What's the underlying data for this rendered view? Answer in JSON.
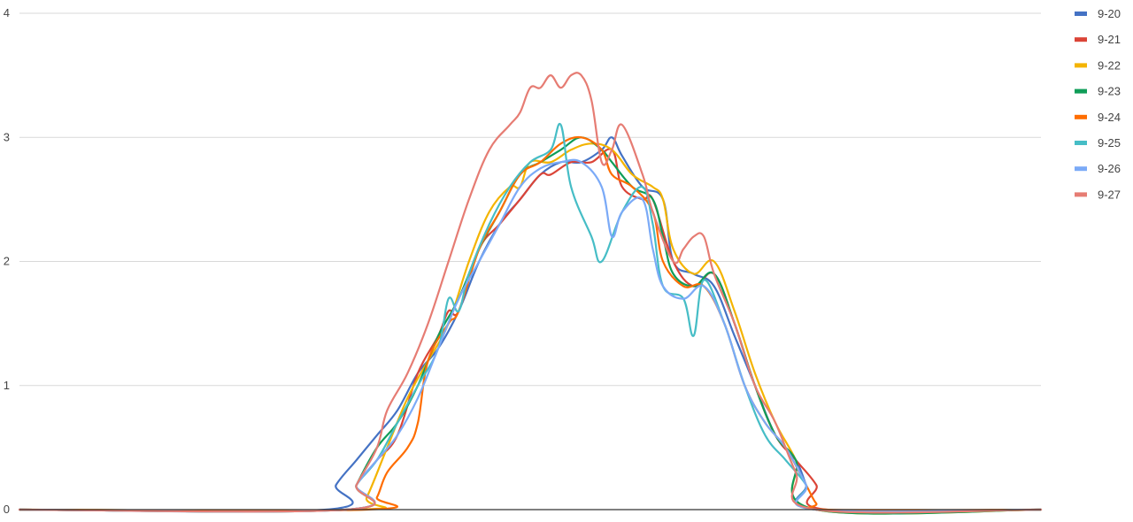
{
  "chart_data": {
    "type": "line",
    "title": "",
    "xlabel": "",
    "ylabel": "",
    "ylim": [
      0,
      4
    ],
    "xlim": [
      0,
      100
    ],
    "yticks": [
      "0",
      "1",
      "2",
      "3",
      "4"
    ],
    "grid": true,
    "legend_position": "right",
    "series": [
      {
        "name": "9-20",
        "color": "#4472c4",
        "points": [
          [
            0,
            0
          ],
          [
            30,
            0
          ],
          [
            31,
            0.2
          ],
          [
            33,
            0.4
          ],
          [
            35,
            0.6
          ],
          [
            37,
            0.8
          ],
          [
            39,
            1.1
          ],
          [
            41,
            1.3
          ],
          [
            43,
            1.6
          ],
          [
            45,
            2.0
          ],
          [
            47,
            2.3
          ],
          [
            49,
            2.5
          ],
          [
            51,
            2.7
          ],
          [
            53,
            2.8
          ],
          [
            55,
            2.8
          ],
          [
            57,
            2.9
          ],
          [
            58,
            3.0
          ],
          [
            59,
            2.85
          ],
          [
            61,
            2.6
          ],
          [
            63,
            2.5
          ],
          [
            64,
            2.0
          ],
          [
            66,
            1.9
          ],
          [
            68,
            1.8
          ],
          [
            70,
            1.4
          ],
          [
            72,
            1.0
          ],
          [
            74,
            0.6
          ],
          [
            76,
            0.4
          ],
          [
            77,
            0.2
          ],
          [
            78,
            0
          ],
          [
            100,
            0
          ]
        ]
      },
      {
        "name": "9-21",
        "color": "#db4437",
        "points": [
          [
            0,
            0
          ],
          [
            32,
            0
          ],
          [
            33,
            0.2
          ],
          [
            35,
            0.4
          ],
          [
            37,
            0.6
          ],
          [
            39,
            1.1
          ],
          [
            41,
            1.4
          ],
          [
            42,
            1.6
          ],
          [
            43,
            1.6
          ],
          [
            45,
            2.1
          ],
          [
            47,
            2.3
          ],
          [
            49,
            2.5
          ],
          [
            51,
            2.7
          ],
          [
            52,
            2.7
          ],
          [
            54,
            2.8
          ],
          [
            56,
            2.8
          ],
          [
            58,
            2.9
          ],
          [
            59,
            2.6
          ],
          [
            61,
            2.5
          ],
          [
            62,
            2.5
          ],
          [
            64,
            2.0
          ],
          [
            66,
            1.8
          ],
          [
            68,
            1.9
          ],
          [
            70,
            1.5
          ],
          [
            72,
            1.0
          ],
          [
            74,
            0.6
          ],
          [
            76,
            0.4
          ],
          [
            78,
            0.2
          ],
          [
            79,
            0
          ],
          [
            100,
            0
          ]
        ]
      },
      {
        "name": "9-22",
        "color": "#f4b400",
        "points": [
          [
            0,
            0
          ],
          [
            33,
            0
          ],
          [
            34,
            0.1
          ],
          [
            36,
            0.5
          ],
          [
            38,
            0.9
          ],
          [
            40,
            1.2
          ],
          [
            42,
            1.5
          ],
          [
            44,
            2.0
          ],
          [
            46,
            2.4
          ],
          [
            48,
            2.6
          ],
          [
            49,
            2.6
          ],
          [
            50,
            2.8
          ],
          [
            52,
            2.8
          ],
          [
            54,
            2.9
          ],
          [
            56,
            2.95
          ],
          [
            58,
            2.9
          ],
          [
            60,
            2.7
          ],
          [
            62,
            2.6
          ],
          [
            63,
            2.5
          ],
          [
            64,
            2.1
          ],
          [
            66,
            1.9
          ],
          [
            68,
            2.0
          ],
          [
            70,
            1.6
          ],
          [
            72,
            1.1
          ],
          [
            74,
            0.7
          ],
          [
            76,
            0.4
          ],
          [
            78,
            0
          ],
          [
            100,
            0
          ]
        ]
      },
      {
        "name": "9-23",
        "color": "#0f9d58",
        "points": [
          [
            0,
            0
          ],
          [
            32,
            0
          ],
          [
            33,
            0.2
          ],
          [
            35,
            0.5
          ],
          [
            37,
            0.7
          ],
          [
            39,
            1.0
          ],
          [
            41,
            1.4
          ],
          [
            43,
            1.7
          ],
          [
            45,
            2.1
          ],
          [
            47,
            2.4
          ],
          [
            49,
            2.7
          ],
          [
            51,
            2.8
          ],
          [
            53,
            2.9
          ],
          [
            55,
            3.0
          ],
          [
            57,
            2.9
          ],
          [
            58,
            2.8
          ],
          [
            60,
            2.6
          ],
          [
            62,
            2.5
          ],
          [
            63,
            2.2
          ],
          [
            64,
            1.9
          ],
          [
            66,
            1.8
          ],
          [
            68,
            1.9
          ],
          [
            70,
            1.5
          ],
          [
            72,
            1.0
          ],
          [
            74,
            0.6
          ],
          [
            76,
            0.4
          ],
          [
            78,
            0.0
          ],
          [
            100,
            0
          ]
        ]
      },
      {
        "name": "9-24",
        "color": "#ff6d00",
        "points": [
          [
            0,
            0
          ],
          [
            34,
            0
          ],
          [
            35,
            0.1
          ],
          [
            36,
            0.3
          ],
          [
            38,
            0.5
          ],
          [
            39,
            0.7
          ],
          [
            40,
            1.2
          ],
          [
            42,
            1.5
          ],
          [
            43,
            1.6
          ],
          [
            45,
            2.1
          ],
          [
            47,
            2.4
          ],
          [
            49,
            2.7
          ],
          [
            51,
            2.8
          ],
          [
            53,
            2.95
          ],
          [
            55,
            3.0
          ],
          [
            57,
            2.9
          ],
          [
            58,
            2.7
          ],
          [
            60,
            2.6
          ],
          [
            62,
            2.4
          ],
          [
            63,
            2.0
          ],
          [
            65,
            1.8
          ],
          [
            67,
            1.8
          ],
          [
            69,
            1.5
          ],
          [
            71,
            1.0
          ],
          [
            73,
            0.7
          ],
          [
            75,
            0.5
          ],
          [
            77,
            0.2
          ],
          [
            78,
            0.05
          ],
          [
            79,
            0
          ],
          [
            100,
            0
          ]
        ]
      },
      {
        "name": "9-25",
        "color": "#46bdc6",
        "points": [
          [
            0,
            0
          ],
          [
            32,
            0
          ],
          [
            33,
            0.2
          ],
          [
            35,
            0.4
          ],
          [
            37,
            0.7
          ],
          [
            39,
            1.0
          ],
          [
            41,
            1.3
          ],
          [
            42,
            1.7
          ],
          [
            43,
            1.6
          ],
          [
            44,
            1.9
          ],
          [
            46,
            2.3
          ],
          [
            48,
            2.6
          ],
          [
            50,
            2.8
          ],
          [
            52,
            2.9
          ],
          [
            53,
            3.1
          ],
          [
            54,
            2.6
          ],
          [
            56,
            2.2
          ],
          [
            57,
            2.0
          ],
          [
            59,
            2.4
          ],
          [
            61,
            2.6
          ],
          [
            62,
            2.3
          ],
          [
            63,
            1.8
          ],
          [
            65,
            1.7
          ],
          [
            66,
            1.4
          ],
          [
            67,
            1.85
          ],
          [
            69,
            1.5
          ],
          [
            71,
            1.0
          ],
          [
            73,
            0.6
          ],
          [
            75,
            0.4
          ],
          [
            77,
            0.2
          ],
          [
            78,
            0
          ],
          [
            100,
            0
          ]
        ]
      },
      {
        "name": "9-26",
        "color": "#7baaf7",
        "points": [
          [
            0,
            0
          ],
          [
            32,
            0
          ],
          [
            33,
            0.2
          ],
          [
            35,
            0.4
          ],
          [
            37,
            0.6
          ],
          [
            39,
            0.9
          ],
          [
            41,
            1.3
          ],
          [
            43,
            1.7
          ],
          [
            45,
            2.0
          ],
          [
            47,
            2.3
          ],
          [
            49,
            2.6
          ],
          [
            51,
            2.75
          ],
          [
            53,
            2.8
          ],
          [
            55,
            2.8
          ],
          [
            57,
            2.6
          ],
          [
            58,
            2.2
          ],
          [
            59,
            2.4
          ],
          [
            61,
            2.5
          ],
          [
            62,
            2.1
          ],
          [
            63,
            1.8
          ],
          [
            65,
            1.7
          ],
          [
            67,
            1.8
          ],
          [
            69,
            1.5
          ],
          [
            71,
            1.0
          ],
          [
            73,
            0.7
          ],
          [
            75,
            0.5
          ],
          [
            77,
            0.2
          ],
          [
            78,
            0
          ],
          [
            100,
            0
          ]
        ]
      },
      {
        "name": "9-27",
        "color": "#e67c73",
        "points": [
          [
            0,
            0
          ],
          [
            32,
            0
          ],
          [
            33,
            0.2
          ],
          [
            35,
            0.5
          ],
          [
            36,
            0.8
          ],
          [
            38,
            1.1
          ],
          [
            40,
            1.5
          ],
          [
            42,
            2.0
          ],
          [
            44,
            2.5
          ],
          [
            46,
            2.9
          ],
          [
            48,
            3.1
          ],
          [
            49,
            3.2
          ],
          [
            50,
            3.4
          ],
          [
            51,
            3.4
          ],
          [
            52,
            3.5
          ],
          [
            53,
            3.4
          ],
          [
            54,
            3.5
          ],
          [
            55,
            3.5
          ],
          [
            56,
            3.3
          ],
          [
            57,
            2.8
          ],
          [
            58,
            2.9
          ],
          [
            59,
            3.1
          ],
          [
            61,
            2.7
          ],
          [
            62,
            2.4
          ],
          [
            64,
            2.0
          ],
          [
            65,
            2.1
          ],
          [
            66,
            2.2
          ],
          [
            67,
            2.2
          ],
          [
            68,
            1.9
          ],
          [
            70,
            1.5
          ],
          [
            72,
            1.0
          ],
          [
            74,
            0.7
          ],
          [
            76,
            0.3
          ],
          [
            78,
            0.0
          ],
          [
            100,
            0
          ]
        ]
      }
    ]
  }
}
